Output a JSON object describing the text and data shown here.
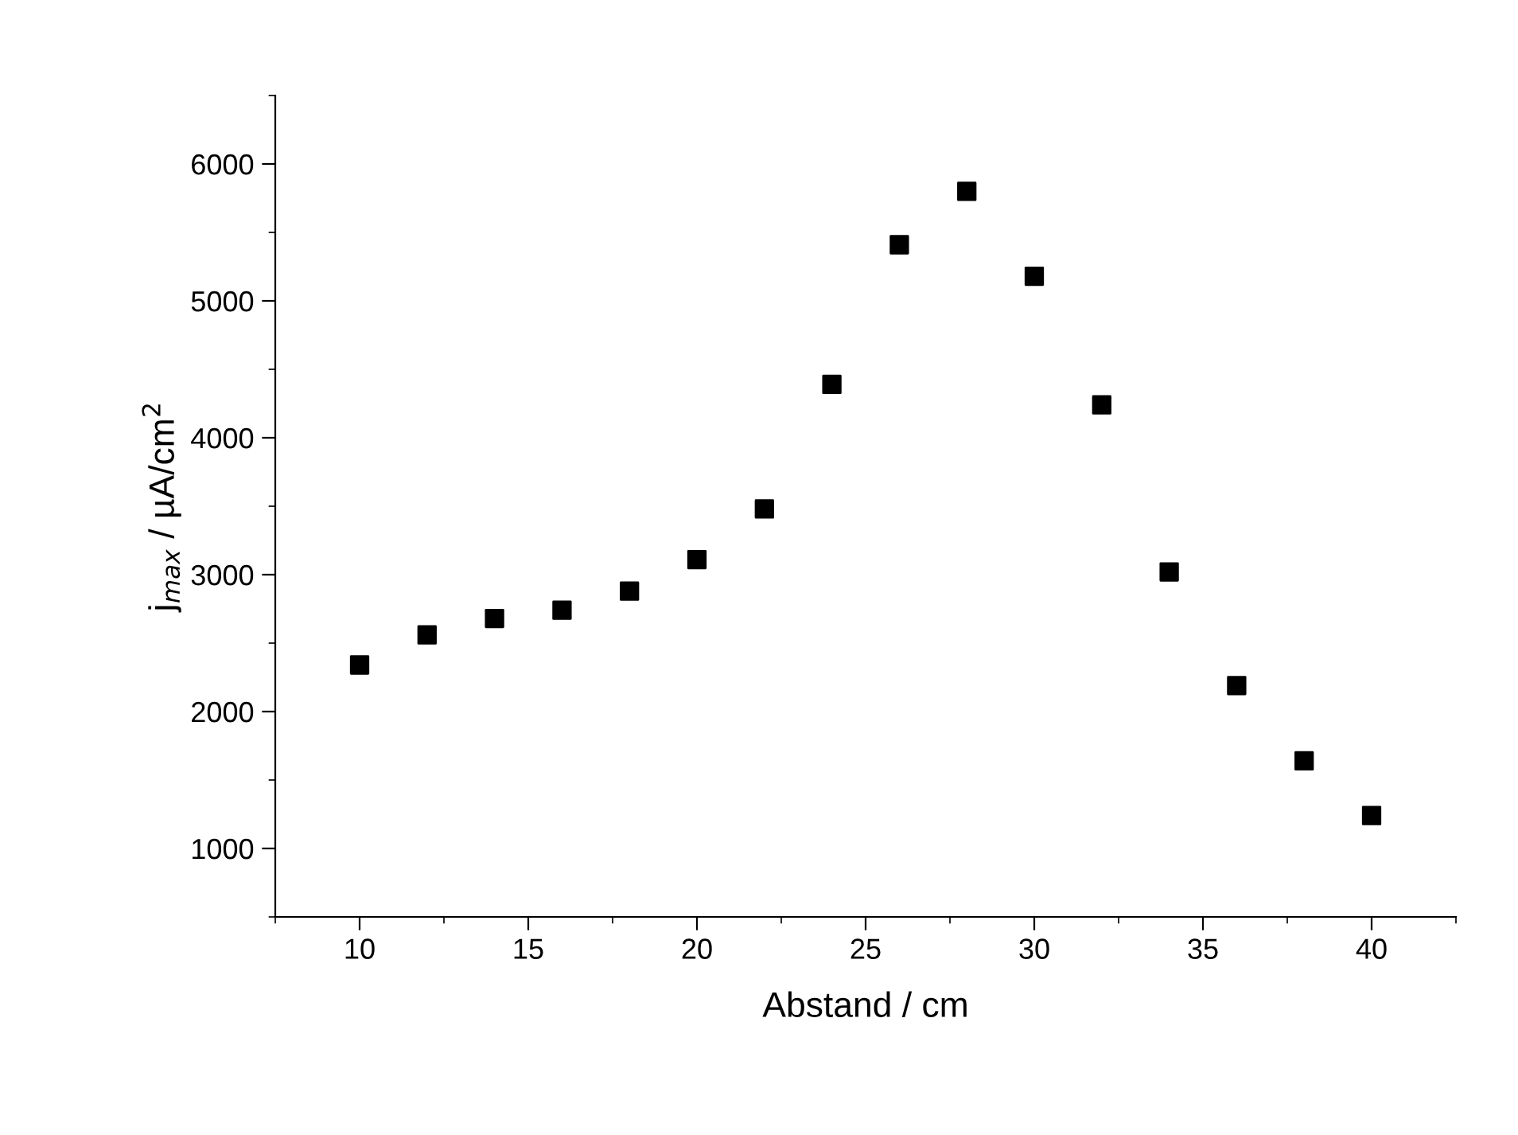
{
  "chart_data": {
    "type": "scatter",
    "xlabel": "Abstand / cm",
    "ylabel": "j$_{max}$ / µA/cm$^{2}$",
    "x": [
      10,
      12,
      14,
      16,
      18,
      20,
      22,
      24,
      26,
      28,
      30,
      32,
      34,
      36,
      38,
      40
    ],
    "series": [
      {
        "color": "#000000",
        "values": [
          2340,
          2560,
          2680,
          2740,
          2880,
          3110,
          3480,
          4390,
          5410,
          5800,
          5180,
          4240,
          3020,
          2190,
          1640,
          1240
        ]
      }
    ],
    "xlim": [
      7.5,
      42.5
    ],
    "xticks": [
      10,
      15,
      20,
      25,
      30,
      35,
      40
    ],
    "ylim": [
      500,
      6500
    ],
    "yticks": [
      1000,
      2000,
      3000,
      4000,
      5000,
      6000
    ],
    "marker": "square",
    "grid": false,
    "legend": false
  }
}
